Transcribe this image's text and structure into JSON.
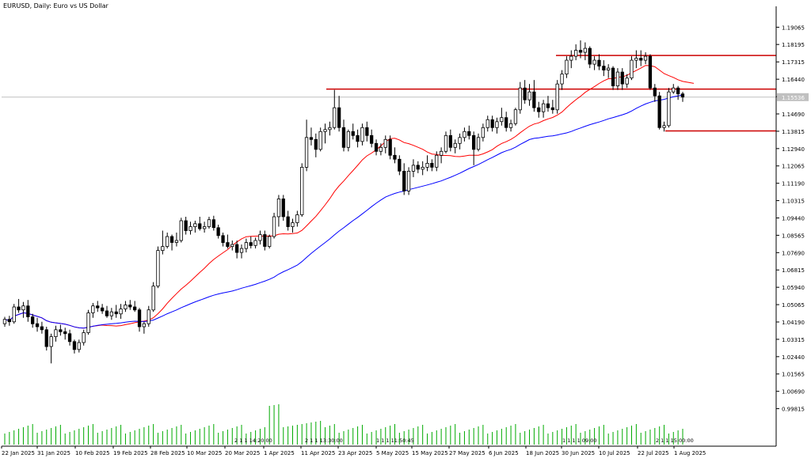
{
  "window": {
    "title": "EURUSD, Daily:  Euro vs US Dollar"
  },
  "chart_data": {
    "type": "candlestick",
    "symbol": "EURUSD",
    "timeframe": "Daily",
    "ylim": [
      0.9888,
      1.1964
    ],
    "y_ticks": [
      "1.19065",
      "1.18195",
      "1.17315",
      "1.16440",
      "1.15560",
      "1.14690",
      "1.13815",
      "1.12940",
      "1.12065",
      "1.11190",
      "1.10315",
      "1.09440",
      "1.08565",
      "1.07690",
      "1.06815",
      "1.05940",
      "1.05065",
      "1.04190",
      "1.03315",
      "1.02440",
      "1.01565",
      "1.00690",
      "0.99815"
    ],
    "x_labels": [
      "22 Jan 2025",
      "31 Jan 2025",
      "10 Feb 2025",
      "19 Feb 2025",
      "28 Feb 2025",
      "10 Mar 2025",
      "20 Mar 2025",
      "1 Apr 2025",
      "11 Apr 2025",
      "23 Apr 2025",
      "5 May 2025",
      "15 May 2025",
      "27 May 2025",
      "6 Jun 2025",
      "18 Jun 2025",
      "30 Jun 2025",
      "10 Jul 2025",
      "22 Jul 2025",
      "1 Aug 2025"
    ],
    "current_price": "1.15536",
    "horizontal_levels": [
      1.1764,
      1.1594,
      1.1383
    ],
    "grid": false,
    "candles": [
      [
        1.041,
        1.0445,
        1.0395,
        1.0432
      ],
      [
        1.0432,
        1.045,
        1.04,
        1.042
      ],
      [
        1.042,
        1.051,
        1.041,
        1.0495
      ],
      [
        1.0495,
        1.0535,
        1.0465,
        1.048
      ],
      [
        1.048,
        1.052,
        1.044,
        1.05
      ],
      [
        1.05,
        1.053,
        1.042,
        1.0445
      ],
      [
        1.0445,
        1.046,
        1.039,
        1.041
      ],
      [
        1.041,
        1.044,
        1.037,
        1.0395
      ],
      [
        1.0395,
        1.042,
        1.036,
        1.038
      ],
      [
        1.038,
        1.0395,
        1.0275,
        1.0295
      ],
      [
        1.0295,
        1.036,
        1.021,
        1.0345
      ],
      [
        1.0345,
        1.04,
        1.032,
        1.038
      ],
      [
        1.038,
        1.0405,
        1.035,
        1.037
      ],
      [
        1.037,
        1.039,
        1.033,
        1.036
      ],
      [
        1.036,
        1.038,
        1.03,
        1.032
      ],
      [
        1.032,
        1.033,
        1.026,
        1.028
      ],
      [
        1.028,
        1.033,
        1.0265,
        1.0315
      ],
      [
        1.0315,
        1.038,
        1.03,
        1.0365
      ],
      [
        1.0365,
        1.048,
        1.0355,
        1.0465
      ],
      [
        1.0465,
        1.0515,
        1.044,
        1.05
      ],
      [
        1.05,
        1.0525,
        1.047,
        1.049
      ],
      [
        1.049,
        1.051,
        1.046,
        1.0475
      ],
      [
        1.0475,
        1.05,
        1.044,
        1.045
      ],
      [
        1.045,
        1.049,
        1.043,
        1.047
      ],
      [
        1.047,
        1.0505,
        1.044,
        1.046
      ],
      [
        1.046,
        1.051,
        1.0435,
        1.0485
      ],
      [
        1.0485,
        1.0525,
        1.047,
        1.0505
      ],
      [
        1.0505,
        1.053,
        1.048,
        1.0495
      ],
      [
        1.0495,
        1.0525,
        1.047,
        1.048
      ],
      [
        1.048,
        1.049,
        1.037,
        1.0395
      ],
      [
        1.0395,
        1.042,
        1.036,
        1.041
      ],
      [
        1.041,
        1.05,
        1.0395,
        1.048
      ],
      [
        1.048,
        1.062,
        1.047,
        1.06
      ],
      [
        1.06,
        1.08,
        1.059,
        1.078
      ],
      [
        1.078,
        1.088,
        1.076,
        1.08
      ],
      [
        1.08,
        1.087,
        1.079,
        1.085
      ],
      [
        1.085,
        1.086,
        1.078,
        1.082
      ],
      [
        1.082,
        1.087,
        1.08,
        1.083
      ],
      [
        1.083,
        1.0945,
        1.082,
        1.093
      ],
      [
        1.093,
        1.095,
        1.086,
        1.088
      ],
      [
        1.088,
        1.0925,
        1.086,
        1.09
      ],
      [
        1.09,
        1.093,
        1.087,
        1.0915
      ],
      [
        1.0915,
        1.095,
        1.088,
        1.089
      ],
      [
        1.089,
        1.0925,
        1.087,
        1.09
      ],
      [
        1.09,
        1.095,
        1.089,
        1.0935
      ],
      [
        1.0935,
        1.0955,
        1.088,
        1.0895
      ],
      [
        1.0895,
        1.091,
        1.084,
        1.0855
      ],
      [
        1.0855,
        1.087,
        1.08,
        1.082
      ],
      [
        1.082,
        1.086,
        1.079,
        1.08
      ],
      [
        1.08,
        1.083,
        1.078,
        1.081
      ],
      [
        1.081,
        1.083,
        1.074,
        1.077
      ],
      [
        1.077,
        1.081,
        1.074,
        1.079
      ],
      [
        1.079,
        1.084,
        1.077,
        1.082
      ],
      [
        1.082,
        1.085,
        1.079,
        1.0805
      ],
      [
        1.0805,
        1.0845,
        1.079,
        1.083
      ],
      [
        1.083,
        1.088,
        1.081,
        1.086
      ],
      [
        1.086,
        1.088,
        1.078,
        1.08
      ],
      [
        1.08,
        1.086,
        1.079,
        1.085
      ],
      [
        1.085,
        1.097,
        1.084,
        1.095
      ],
      [
        1.095,
        1.106,
        1.09,
        1.104
      ],
      [
        1.104,
        1.106,
        1.093,
        1.095
      ],
      [
        1.095,
        1.098,
        1.088,
        1.09
      ],
      [
        1.09,
        1.094,
        1.087,
        1.092
      ],
      [
        1.092,
        1.098,
        1.09,
        1.096
      ],
      [
        1.096,
        1.122,
        1.095,
        1.12
      ],
      [
        1.12,
        1.144,
        1.118,
        1.135
      ],
      [
        1.135,
        1.14,
        1.131,
        1.134
      ],
      [
        1.134,
        1.137,
        1.125,
        1.129
      ],
      [
        1.129,
        1.14,
        1.128,
        1.138
      ],
      [
        1.138,
        1.142,
        1.132,
        1.139
      ],
      [
        1.139,
        1.143,
        1.136,
        1.14
      ],
      [
        1.14,
        1.159,
        1.139,
        1.15
      ],
      [
        1.15,
        1.156,
        1.138,
        1.14
      ],
      [
        1.14,
        1.144,
        1.128,
        1.13
      ],
      [
        1.13,
        1.139,
        1.128,
        1.138
      ],
      [
        1.138,
        1.142,
        1.134,
        1.136
      ],
      [
        1.136,
        1.139,
        1.13,
        1.133
      ],
      [
        1.133,
        1.142,
        1.131,
        1.14
      ],
      [
        1.14,
        1.143,
        1.133,
        1.136
      ],
      [
        1.136,
        1.139,
        1.13,
        1.132
      ],
      [
        1.132,
        1.134,
        1.126,
        1.128
      ],
      [
        1.128,
        1.132,
        1.126,
        1.13
      ],
      [
        1.13,
        1.136,
        1.127,
        1.134
      ],
      [
        1.134,
        1.136,
        1.124,
        1.126
      ],
      [
        1.126,
        1.13,
        1.122,
        1.124
      ],
      [
        1.124,
        1.126,
        1.116,
        1.118
      ],
      [
        1.118,
        1.122,
        1.106,
        1.108
      ],
      [
        1.108,
        1.12,
        1.106,
        1.118
      ],
      [
        1.118,
        1.124,
        1.115,
        1.121
      ],
      [
        1.121,
        1.123,
        1.117,
        1.119
      ],
      [
        1.119,
        1.123,
        1.116,
        1.12
      ],
      [
        1.12,
        1.126,
        1.118,
        1.122
      ],
      [
        1.122,
        1.124,
        1.118,
        1.12
      ],
      [
        1.12,
        1.128,
        1.118,
        1.126
      ],
      [
        1.126,
        1.13,
        1.122,
        1.128
      ],
      [
        1.128,
        1.138,
        1.127,
        1.136
      ],
      [
        1.136,
        1.139,
        1.128,
        1.13
      ],
      [
        1.13,
        1.134,
        1.127,
        1.132
      ],
      [
        1.132,
        1.137,
        1.129,
        1.135
      ],
      [
        1.135,
        1.14,
        1.133,
        1.138
      ],
      [
        1.138,
        1.141,
        1.134,
        1.136
      ],
      [
        1.136,
        1.138,
        1.121,
        1.129
      ],
      [
        1.129,
        1.137,
        1.128,
        1.135
      ],
      [
        1.135,
        1.142,
        1.133,
        1.14
      ],
      [
        1.14,
        1.146,
        1.138,
        1.144
      ],
      [
        1.144,
        1.146,
        1.138,
        1.14
      ],
      [
        1.14,
        1.145,
        1.137,
        1.143
      ],
      [
        1.143,
        1.15,
        1.141,
        1.145
      ],
      [
        1.145,
        1.148,
        1.138,
        1.14
      ],
      [
        1.14,
        1.144,
        1.138,
        1.142
      ],
      [
        1.142,
        1.15,
        1.141,
        1.149
      ],
      [
        1.149,
        1.163,
        1.147,
        1.16
      ],
      [
        1.16,
        1.164,
        1.152,
        1.154
      ],
      [
        1.154,
        1.162,
        1.151,
        1.158
      ],
      [
        1.158,
        1.164,
        1.148,
        1.15
      ],
      [
        1.15,
        1.153,
        1.145,
        1.148
      ],
      [
        1.148,
        1.154,
        1.145,
        1.152
      ],
      [
        1.152,
        1.156,
        1.148,
        1.15
      ],
      [
        1.15,
        1.154,
        1.147,
        1.149
      ],
      [
        1.149,
        1.164,
        1.147,
        1.162
      ],
      [
        1.162,
        1.169,
        1.159,
        1.167
      ],
      [
        1.167,
        1.176,
        1.165,
        1.174
      ],
      [
        1.174,
        1.179,
        1.17,
        1.176
      ],
      [
        1.176,
        1.182,
        1.174,
        1.179
      ],
      [
        1.179,
        1.184,
        1.175,
        1.178
      ],
      [
        1.178,
        1.183,
        1.174,
        1.18
      ],
      [
        1.18,
        1.181,
        1.17,
        1.172
      ],
      [
        1.172,
        1.176,
        1.169,
        1.174
      ],
      [
        1.174,
        1.177,
        1.169,
        1.171
      ],
      [
        1.171,
        1.174,
        1.166,
        1.169
      ],
      [
        1.169,
        1.172,
        1.165,
        1.17
      ],
      [
        1.17,
        1.171,
        1.159,
        1.161
      ],
      [
        1.161,
        1.17,
        1.159,
        1.168
      ],
      [
        1.168,
        1.17,
        1.159,
        1.162
      ],
      [
        1.162,
        1.167,
        1.16,
        1.165
      ],
      [
        1.165,
        1.176,
        1.164,
        1.174
      ],
      [
        1.174,
        1.179,
        1.17,
        1.175
      ],
      [
        1.175,
        1.179,
        1.171,
        1.174
      ],
      [
        1.174,
        1.178,
        1.172,
        1.176
      ],
      [
        1.176,
        1.177,
        1.159,
        1.16
      ],
      [
        1.16,
        1.162,
        1.153,
        1.156
      ],
      [
        1.156,
        1.158,
        1.139,
        1.14
      ],
      [
        1.14,
        1.143,
        1.138,
        1.141
      ],
      [
        1.141,
        1.16,
        1.14,
        1.158
      ],
      [
        1.158,
        1.162,
        1.157,
        1.16
      ],
      [
        1.16,
        1.161,
        1.154,
        1.157
      ],
      [
        1.157,
        1.158,
        1.153,
        1.1554
      ]
    ],
    "ma_fast": {
      "name": "",
      "color": "#ff0000"
    },
    "ma_slow": {
      "name": "",
      "color": "#0000ff"
    },
    "volume_labels": [
      "2 1 1 14:20:00",
      "2 1 1 13:30:00",
      "1 1 1 11:50:45",
      "1 1 1 1 09:00",
      "2 1 1 15:00:00"
    ],
    "colors": {
      "axis": "#000000",
      "bull_body": "#ffffff",
      "bear_body": "#000000",
      "level": "#cc0000",
      "volume": "#00aa00",
      "price_line": "#c0c0c0"
    }
  }
}
